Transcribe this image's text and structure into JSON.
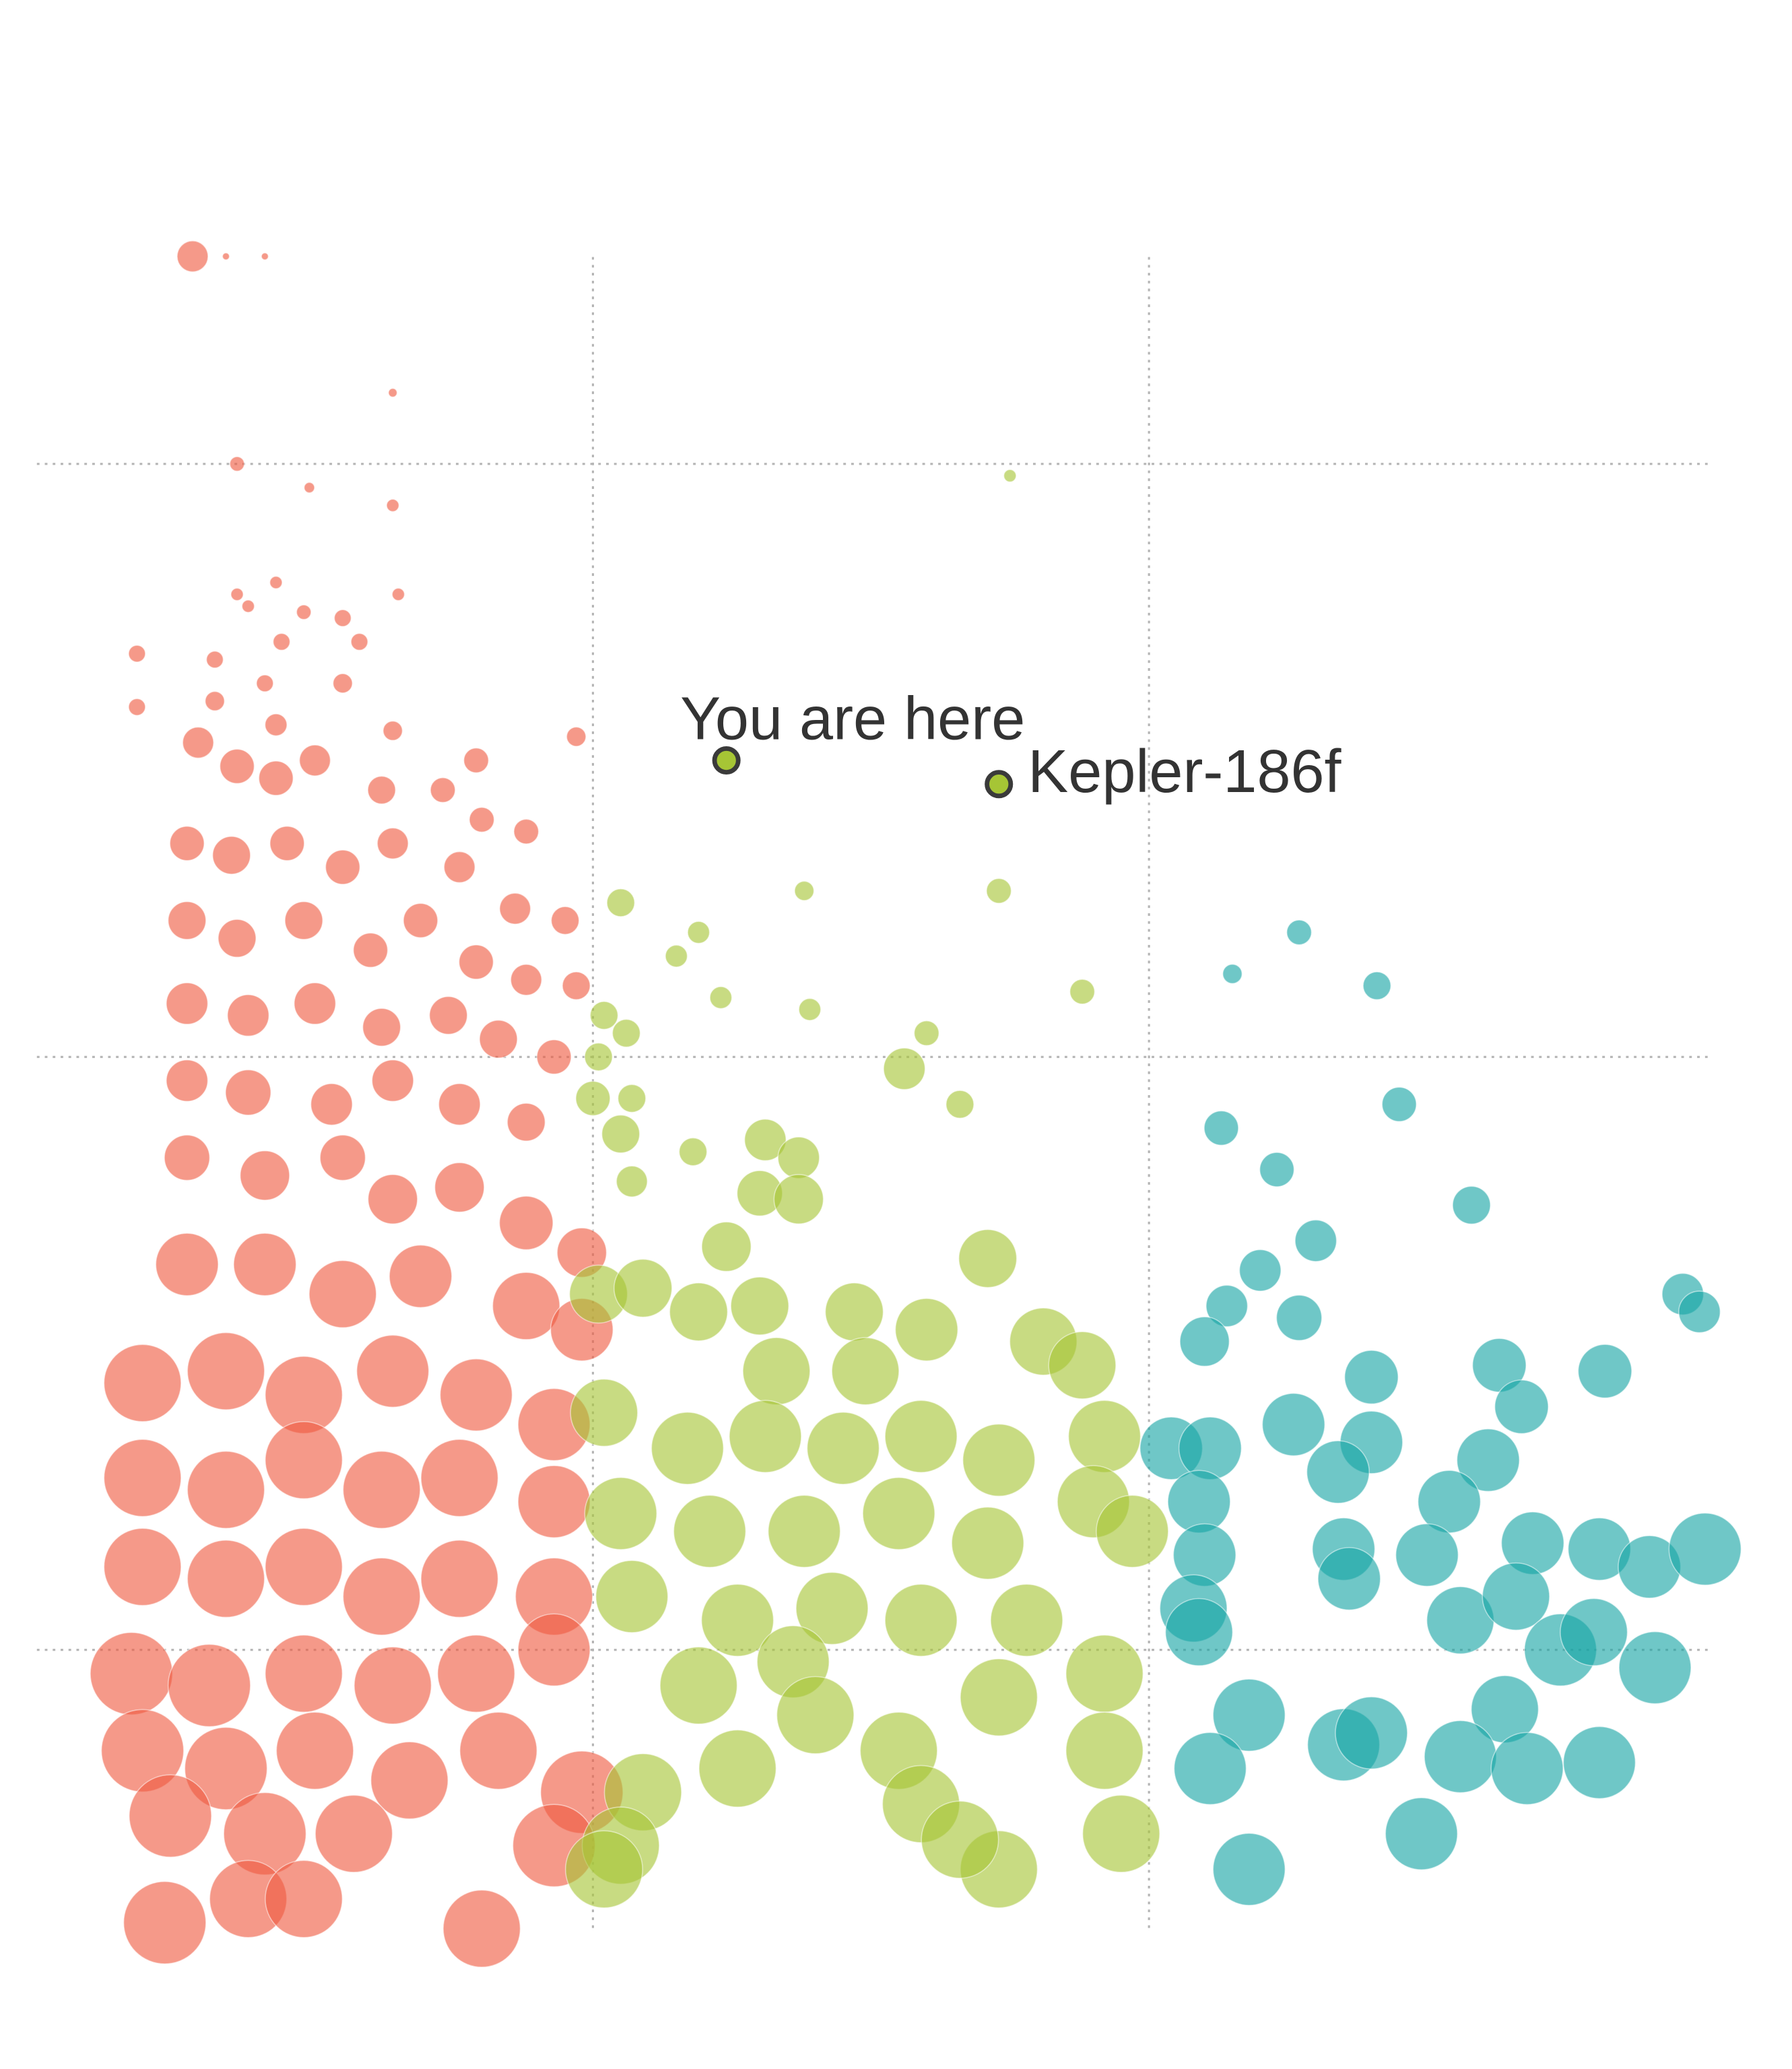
{
  "chart_data": {
    "type": "scatter",
    "title": "",
    "xlabel": "",
    "ylabel": "",
    "xlim": [
      0,
      300
    ],
    "ylim": [
      -50,
      235
    ],
    "grid": true,
    "x_gridlines": [
      100,
      200
    ],
    "y_gridlines": [
      0,
      100,
      200
    ],
    "marker_size_encoded": true,
    "series": [
      {
        "color": "#ef5a40",
        "points": [
          [
            28,
            235,
            0.95
          ],
          [
            34,
            235,
            0.45
          ],
          [
            41,
            235,
            0.45
          ],
          [
            64,
            212,
            0.5
          ],
          [
            36,
            200,
            0.65
          ],
          [
            49,
            196,
            0.55
          ],
          [
            64,
            193,
            0.6
          ],
          [
            36,
            178,
            0.6
          ],
          [
            43,
            180,
            0.6
          ],
          [
            65,
            178,
            0.6
          ],
          [
            38,
            176,
            0.6
          ],
          [
            48,
            175,
            0.65
          ],
          [
            55,
            174,
            0.7
          ],
          [
            18,
            168,
            0.7
          ],
          [
            32,
            167,
            0.7
          ],
          [
            44,
            170,
            0.7
          ],
          [
            58,
            170,
            0.7
          ],
          [
            18,
            159,
            0.7
          ],
          [
            32,
            160,
            0.75
          ],
          [
            41,
            163,
            0.7
          ],
          [
            55,
            163,
            0.75
          ],
          [
            64,
            155,
            0.75
          ],
          [
            97,
            154,
            0.75
          ],
          [
            79,
            150,
            0.85
          ],
          [
            43,
            156,
            0.8
          ],
          [
            29,
            153,
            0.95
          ],
          [
            36,
            149,
            1.0
          ],
          [
            43,
            147,
            1.0
          ],
          [
            50,
            150,
            0.95
          ],
          [
            62,
            145,
            0.9
          ],
          [
            73,
            145,
            0.85
          ],
          [
            80,
            140,
            0.85
          ],
          [
            88,
            138,
            0.85
          ],
          [
            27,
            136,
            1.0
          ],
          [
            35,
            134,
            1.05
          ],
          [
            45,
            136,
            1.0
          ],
          [
            55,
            132,
            1.0
          ],
          [
            64,
            136,
            0.95
          ],
          [
            76,
            132,
            0.95
          ],
          [
            86,
            125,
            0.95
          ],
          [
            95,
            123,
            0.9
          ],
          [
            27,
            123,
            1.05
          ],
          [
            36,
            120,
            1.05
          ],
          [
            48,
            123,
            1.05
          ],
          [
            60,
            118,
            1.0
          ],
          [
            69,
            123,
            1.0
          ],
          [
            79,
            116,
            1.0
          ],
          [
            88,
            113,
            0.95
          ],
          [
            97,
            112,
            0.9
          ],
          [
            27,
            109,
            1.1
          ],
          [
            38,
            107,
            1.1
          ],
          [
            50,
            109,
            1.1
          ],
          [
            62,
            105,
            1.05
          ],
          [
            74,
            107,
            1.05
          ],
          [
            83,
            103,
            1.05
          ],
          [
            93,
            100,
            1.0
          ],
          [
            27,
            96,
            1.1
          ],
          [
            38,
            94,
            1.15
          ],
          [
            53,
            92,
            1.1
          ],
          [
            64,
            96,
            1.1
          ],
          [
            76,
            92,
            1.1
          ],
          [
            88,
            89,
            1.05
          ],
          [
            27,
            83,
            1.15
          ],
          [
            41,
            80,
            1.2
          ],
          [
            55,
            83,
            1.15
          ],
          [
            64,
            76,
            1.2
          ],
          [
            76,
            78,
            1.2
          ],
          [
            88,
            72,
            1.25
          ],
          [
            98,
            67,
            1.2
          ],
          [
            27,
            65,
            1.35
          ],
          [
            41,
            65,
            1.35
          ],
          [
            55,
            60,
            1.4
          ],
          [
            69,
            63,
            1.35
          ],
          [
            88,
            58,
            1.4
          ],
          [
            98,
            54,
            1.35
          ],
          [
            19,
            45,
            1.5
          ],
          [
            34,
            47,
            1.5
          ],
          [
            48,
            43,
            1.5
          ],
          [
            64,
            47,
            1.45
          ],
          [
            79,
            43,
            1.45
          ],
          [
            93,
            38,
            1.45
          ],
          [
            19,
            29,
            1.5
          ],
          [
            34,
            27,
            1.5
          ],
          [
            48,
            32,
            1.5
          ],
          [
            62,
            27,
            1.5
          ],
          [
            76,
            29,
            1.5
          ],
          [
            93,
            25,
            1.45
          ],
          [
            19,
            14,
            1.5
          ],
          [
            34,
            12,
            1.5
          ],
          [
            48,
            14,
            1.5
          ],
          [
            62,
            9,
            1.5
          ],
          [
            76,
            12,
            1.5
          ],
          [
            93,
            9,
            1.5
          ],
          [
            17,
            -4,
            1.55
          ],
          [
            31,
            -6,
            1.55
          ],
          [
            48,
            -4,
            1.5
          ],
          [
            64,
            -6,
            1.5
          ],
          [
            79,
            -4,
            1.5
          ],
          [
            93,
            0,
            1.45
          ],
          [
            19,
            -17,
            1.55
          ],
          [
            34,
            -20,
            1.55
          ],
          [
            50,
            -17,
            1.5
          ],
          [
            67,
            -22,
            1.5
          ],
          [
            83,
            -17,
            1.5
          ],
          [
            24,
            -28,
            1.55
          ],
          [
            41,
            -31,
            1.55
          ],
          [
            57,
            -31,
            1.5
          ],
          [
            98,
            -24,
            1.55
          ],
          [
            93,
            -33,
            1.55
          ],
          [
            23,
            -46,
            1.55
          ],
          [
            38,
            -42,
            1.5
          ],
          [
            48,
            -42,
            1.5
          ],
          [
            80,
            -47,
            1.5
          ]
        ]
      },
      {
        "color": "#a6c535",
        "points": [
          [
            105,
            126,
            0.9
          ],
          [
            138,
            128,
            0.75
          ],
          [
            119,
            121,
            0.8
          ],
          [
            115,
            117,
            0.8
          ],
          [
            173,
            128,
            0.85
          ],
          [
            175,
            198,
            0.6
          ],
          [
            123,
            110,
            0.8
          ],
          [
            139,
            108,
            0.8
          ],
          [
            188,
            111,
            0.85
          ],
          [
            102,
            107,
            0.9
          ],
          [
            106,
            104,
            0.9
          ],
          [
            101,
            100,
            0.9
          ],
          [
            160,
            104,
            0.85
          ],
          [
            156,
            98,
            1.1
          ],
          [
            166,
            92,
            0.9
          ],
          [
            100,
            93,
            1.0
          ],
          [
            107,
            93,
            0.9
          ],
          [
            105,
            87,
            1.05
          ],
          [
            118,
            84,
            0.9
          ],
          [
            131,
            86,
            1.1
          ],
          [
            137,
            83,
            1.1
          ],
          [
            107,
            79,
            0.95
          ],
          [
            130,
            77,
            1.15
          ],
          [
            137,
            76,
            1.2
          ],
          [
            124,
            68,
            1.2
          ],
          [
            171,
            66,
            1.3
          ],
          [
            101,
            60,
            1.3
          ],
          [
            109,
            61,
            1.3
          ],
          [
            119,
            57,
            1.3
          ],
          [
            130,
            58,
            1.3
          ],
          [
            147,
            57,
            1.3
          ],
          [
            160,
            54,
            1.35
          ],
          [
            181,
            52,
            1.4
          ],
          [
            188,
            48,
            1.4
          ],
          [
            133,
            47,
            1.4
          ],
          [
            149,
            47,
            1.4
          ],
          [
            102,
            40,
            1.4
          ],
          [
            117,
            34,
            1.45
          ],
          [
            131,
            36,
            1.45
          ],
          [
            145,
            34,
            1.45
          ],
          [
            159,
            36,
            1.45
          ],
          [
            173,
            32,
            1.45
          ],
          [
            192,
            36,
            1.45
          ],
          [
            105,
            23,
            1.45
          ],
          [
            121,
            20,
            1.45
          ],
          [
            138,
            20,
            1.45
          ],
          [
            155,
            23,
            1.45
          ],
          [
            171,
            18,
            1.45
          ],
          [
            190,
            25,
            1.45
          ],
          [
            197,
            20,
            1.45
          ],
          [
            107,
            9,
            1.45
          ],
          [
            126,
            5,
            1.45
          ],
          [
            143,
            7,
            1.45
          ],
          [
            159,
            5,
            1.45
          ],
          [
            178,
            5,
            1.45
          ],
          [
            192,
            -4,
            1.5
          ],
          [
            119,
            -6,
            1.5
          ],
          [
            136,
            -2,
            1.45
          ],
          [
            173,
            -8,
            1.5
          ],
          [
            140,
            -11,
            1.5
          ],
          [
            126,
            -20,
            1.5
          ],
          [
            155,
            -17,
            1.5
          ],
          [
            192,
            -17,
            1.5
          ],
          [
            109,
            -24,
            1.5
          ],
          [
            159,
            -26,
            1.5
          ],
          [
            195,
            -31,
            1.5
          ],
          [
            105,
            -33,
            1.5
          ],
          [
            173,
            -37,
            1.5
          ],
          [
            102,
            -37,
            1.5
          ],
          [
            166,
            -32,
            1.5
          ]
        ]
      },
      {
        "color": "#17a5a5",
        "points": [
          [
            227,
            121,
            0.85
          ],
          [
            215,
            114,
            0.75
          ],
          [
            241,
            112,
            0.9
          ],
          [
            245,
            92,
            1.0
          ],
          [
            213,
            88,
            1.0
          ],
          [
            223,
            81,
            1.0
          ],
          [
            258,
            75,
            1.05
          ],
          [
            230,
            69,
            1.1
          ],
          [
            220,
            64,
            1.1
          ],
          [
            214,
            58,
            1.1
          ],
          [
            227,
            56,
            1.15
          ],
          [
            210,
            52,
            1.2
          ],
          [
            296,
            60,
            1.1
          ],
          [
            299,
            57,
            1.1
          ],
          [
            240,
            46,
            1.25
          ],
          [
            263,
            48,
            1.25
          ],
          [
            282,
            47,
            1.25
          ],
          [
            267,
            41,
            1.25
          ],
          [
            226,
            38,
            1.35
          ],
          [
            204,
            34,
            1.35
          ],
          [
            211,
            34,
            1.35
          ],
          [
            240,
            35,
            1.35
          ],
          [
            234,
            30,
            1.35
          ],
          [
            261,
            32,
            1.35
          ],
          [
            254,
            25,
            1.35
          ],
          [
            209,
            25,
            1.35
          ],
          [
            210,
            16,
            1.35
          ],
          [
            235,
            17,
            1.35
          ],
          [
            236,
            12,
            1.35
          ],
          [
            250,
            16,
            1.35
          ],
          [
            269,
            18,
            1.35
          ],
          [
            281,
            17,
            1.35
          ],
          [
            290,
            14,
            1.35
          ],
          [
            300,
            17,
            1.45
          ],
          [
            208,
            7,
            1.4
          ],
          [
            209,
            3,
            1.4
          ],
          [
            256,
            5,
            1.4
          ],
          [
            266,
            9,
            1.4
          ],
          [
            274,
            0,
            1.45
          ],
          [
            280,
            3,
            1.4
          ],
          [
            291,
            -3,
            1.45
          ],
          [
            218,
            -11,
            1.45
          ],
          [
            264,
            -10,
            1.4
          ],
          [
            235,
            -16,
            1.45
          ],
          [
            240,
            -14,
            1.45
          ],
          [
            211,
            -20,
            1.45
          ],
          [
            256,
            -18,
            1.45
          ],
          [
            268,
            -20,
            1.45
          ],
          [
            281,
            -19,
            1.45
          ],
          [
            249,
            -31,
            1.45
          ],
          [
            218,
            -37,
            1.45
          ]
        ]
      }
    ],
    "annotations": [
      {
        "text": "You are here",
        "x": 124,
        "y": 150,
        "color": "#a6c535"
      },
      {
        "text": "Kepler-186f",
        "x": 173,
        "y": 146,
        "color": "#a6c535"
      }
    ]
  }
}
